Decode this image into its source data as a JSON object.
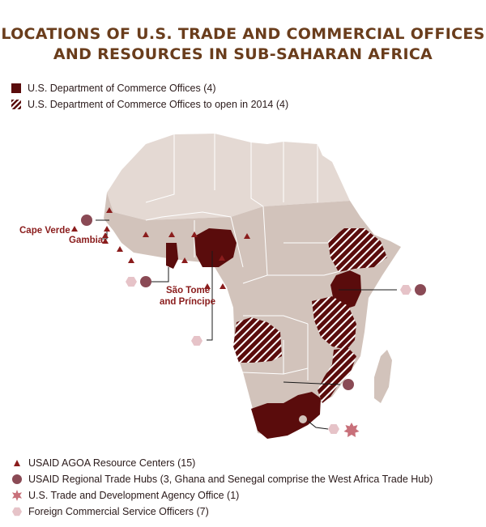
{
  "title": {
    "line1": "LOCATIONS OF U.S. TRADE AND COMMERCIAL OFFICES",
    "line2": "AND RESOURCES IN SUB-SAHARAN AFRICA"
  },
  "legend_top": [
    {
      "label": "U.S. Department of Commerce Offices (4)",
      "style": "solid"
    },
    {
      "label": "U.S. Department of Commerce Offices to open in 2014 (4)",
      "style": "hatched"
    }
  ],
  "map_labels": {
    "cape_verde": "Cape Verde",
    "gambia": "Gambia",
    "sao_tome": "São Tomé",
    "and_principe": "and Príncipe"
  },
  "legend_bottom": [
    {
      "label": "USAID AGOA Resource Centers (15)",
      "icon": "triangle-icon"
    },
    {
      "label": "USAID Regional Trade Hubs (3, Ghana and Senegal comprise the West Africa Trade Hub)",
      "icon": "circle-icon"
    },
    {
      "label": "U.S. Trade and Development Agency Office (1)",
      "icon": "star-icon"
    },
    {
      "label": "Foreign Commercial Service Officers (7)",
      "icon": "hexagon-icon"
    }
  ],
  "colors": {
    "office": "#5a0c0c",
    "land": "#e4d9d3",
    "africa_land": "#d2c3bb",
    "title": "#6a3d1c",
    "label": "#8a1c1c",
    "hub_circle": "#8a4a55",
    "fcs_hexagon": "#e6c3c8",
    "tda_star": "#c8707a"
  }
}
